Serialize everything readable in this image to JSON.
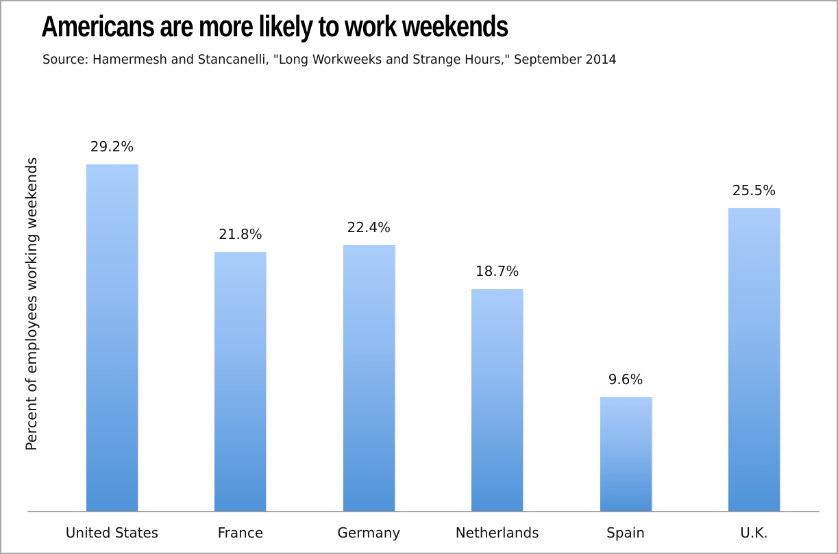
{
  "chart_data": {
    "type": "bar",
    "title": "Americans are more likely to work weekends",
    "subtitle": "Source: Hamermesh and Stancanelli, \"Long Workweeks and Strange Hours,\" September 2014",
    "xlabel": "",
    "ylabel": "Percent of employees working weekends",
    "categories": [
      "United States",
      "France",
      "Germany",
      "Netherlands",
      "Spain",
      "U.K."
    ],
    "values": [
      29.2,
      21.8,
      22.4,
      18.7,
      9.6,
      25.5
    ],
    "value_labels": [
      "29.2%",
      "21.8%",
      "22.4%",
      "18.7%",
      "9.6%",
      "25.5%"
    ],
    "ylim": [
      0,
      33.8
    ],
    "grid": false,
    "legend": "none",
    "bar_color_top": "#aacdfb",
    "bar_color_bottom": "#4f93d8"
  }
}
